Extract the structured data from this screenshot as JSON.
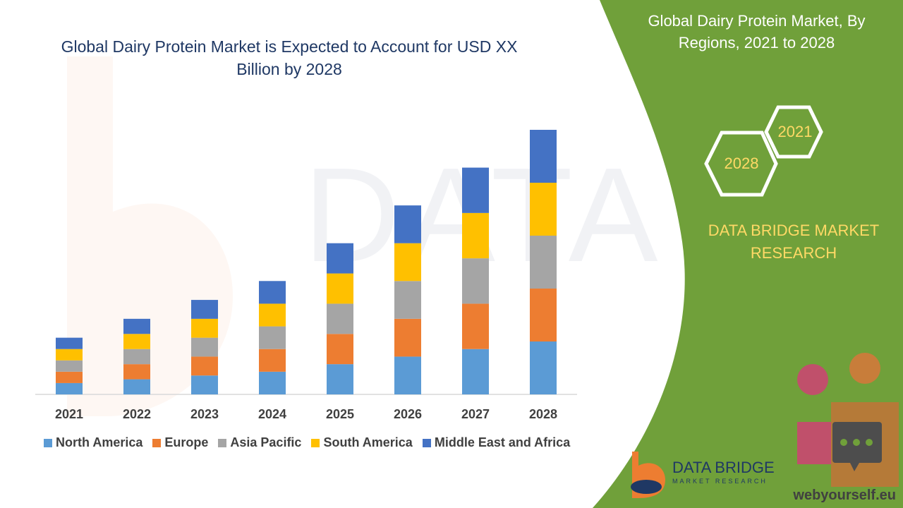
{
  "title": "Global Dairy Protein Market is Expected to Account for USD XX Billion by 2028",
  "right_panel": {
    "title": "Global Dairy Protein Market, By Regions, 2021 to 2028",
    "hex_labels": [
      "2021",
      "2028"
    ],
    "brand": "DATA BRIDGE MARKET RESEARCH",
    "logo_text": "DATA BRIDGE",
    "logo_subtext": "MARKET RESEARCH",
    "url": "webyourself.eu"
  },
  "colors": {
    "green_panel": "#70a03a",
    "text_yellow": "#ffd966",
    "title_blue": "#1f3864"
  },
  "chart_data": {
    "type": "bar",
    "stacked": true,
    "categories": [
      "2021",
      "2022",
      "2023",
      "2024",
      "2025",
      "2026",
      "2027",
      "2028"
    ],
    "series": [
      {
        "name": "North America",
        "color": "#5b9bd5",
        "values": [
          15,
          20,
          25,
          30,
          40,
          50,
          60,
          70
        ]
      },
      {
        "name": "Europe",
        "color": "#ed7d31",
        "values": [
          15,
          20,
          25,
          30,
          40,
          50,
          60,
          70
        ]
      },
      {
        "name": "Asia Pacific",
        "color": "#a5a5a5",
        "values": [
          15,
          20,
          25,
          30,
          40,
          50,
          60,
          70
        ]
      },
      {
        "name": "South America",
        "color": "#ffc000",
        "values": [
          15,
          20,
          25,
          30,
          40,
          50,
          60,
          70
        ]
      },
      {
        "name": "Middle East and Africa",
        "color": "#4472c4",
        "values": [
          15,
          20,
          25,
          30,
          40,
          50,
          60,
          70
        ]
      }
    ],
    "ylim": [
      0,
      350
    ],
    "grid": false,
    "legend_position": "bottom"
  }
}
